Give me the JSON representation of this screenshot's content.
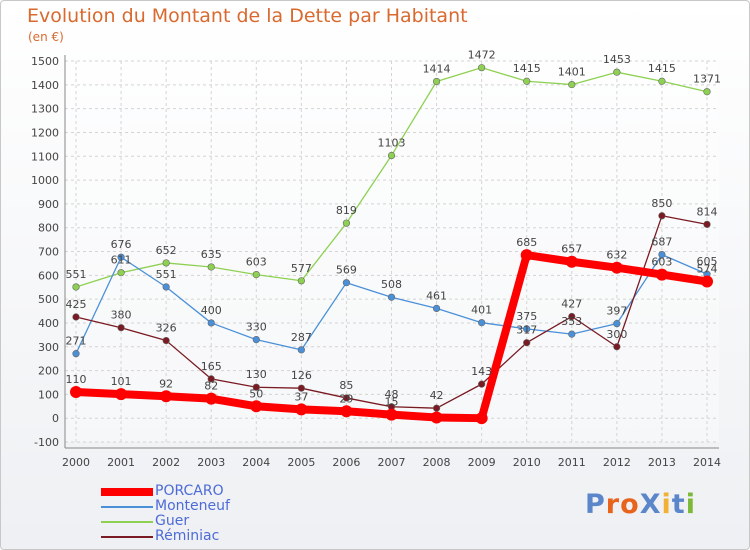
{
  "chart_data": {
    "type": "line",
    "title": "Evolution du Montant de la Dette par Habitant",
    "ylabel": "(en €)",
    "x": [
      "2000",
      "2001",
      "2002",
      "2003",
      "2004",
      "2005",
      "2006",
      "2007",
      "2008",
      "2009",
      "2010",
      "2011",
      "2012",
      "2013",
      "2014"
    ],
    "ylim": [
      -100,
      1500
    ],
    "yticks": [
      "-100",
      "0",
      "100",
      "200",
      "300",
      "400",
      "500",
      "600",
      "700",
      "800",
      "900",
      "1000",
      "1100",
      "1200",
      "1300",
      "1400",
      "1500"
    ],
    "grid": true,
    "legend_position": "bottom-left",
    "series": [
      {
        "name": "PORCARO",
        "color": "#ff0000",
        "values": [
          110,
          101,
          92,
          82,
          50,
          37,
          29,
          15,
          3,
          0,
          685,
          657,
          632,
          603,
          574
        ],
        "labels": [
          "110",
          "101",
          "92",
          "82",
          "50",
          "37",
          "29",
          "15",
          "",
          "",
          "685",
          "657",
          "632",
          "603",
          "574"
        ]
      },
      {
        "name": "Monteneuf",
        "color": "#4a90d9",
        "values": [
          271,
          676,
          551,
          400,
          330,
          287,
          569,
          508,
          461,
          401,
          375,
          353,
          397,
          687,
          605
        ],
        "labels": [
          "271",
          "676",
          "551",
          "400",
          "330",
          "287",
          "569",
          "508",
          "461",
          "401",
          "375",
          "353",
          "397",
          "687",
          "605"
        ]
      },
      {
        "name": "Guer",
        "color": "#8ed152",
        "values": [
          551,
          611,
          652,
          635,
          603,
          577,
          819,
          1103,
          1414,
          1472,
          1415,
          1401,
          1453,
          1415,
          1371
        ],
        "labels": [
          "551",
          "611",
          "652",
          "635",
          "603",
          "577",
          "819",
          "1103",
          "1414",
          "1472",
          "1415",
          "1401",
          "1453",
          "1415",
          "1371"
        ]
      },
      {
        "name": "Réminiac",
        "color": "#7a1a22",
        "values": [
          425,
          380,
          326,
          165,
          130,
          126,
          85,
          48,
          42,
          143,
          317,
          427,
          300,
          850,
          814
        ],
        "labels": [
          "425",
          "380",
          "326",
          "165",
          "130",
          "126",
          "85",
          "48",
          "42",
          "143",
          "317",
          "427",
          "300",
          "850",
          "814"
        ]
      }
    ]
  },
  "logo": {
    "text": "ProXiti",
    "colors": [
      "#5b86c9",
      "#e8631c",
      "#e8631c",
      "#5b86c9",
      "#f2b134",
      "#5b86c9",
      "#7cb93a"
    ]
  }
}
